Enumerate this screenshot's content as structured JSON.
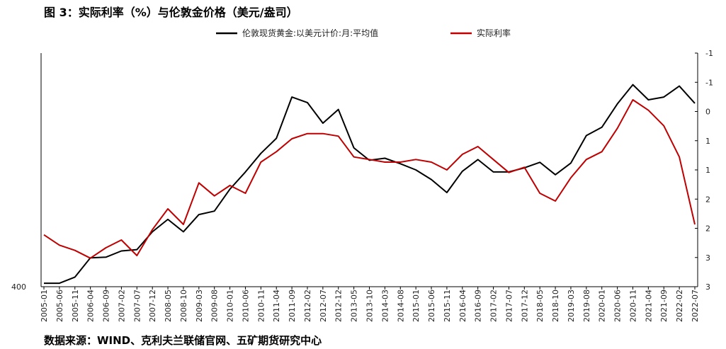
{
  "title": "图 3：实际利率（%）与伦敦金价格（美元/盎司）",
  "source": "数据来源：WIND、克利夫兰联储官网、五矿期货研究中心",
  "chart_data": {
    "type": "line",
    "title": "图 3：实际利率（%）与伦敦金价格（美元/盎司）",
    "x_ticks": [
      "2005-01",
      "2005-06",
      "2005-11",
      "2006-04",
      "2006-09",
      "2007-02",
      "2007-07",
      "2007-12",
      "2008-05",
      "2008-10",
      "2009-03",
      "2009-08",
      "2010-01",
      "2010-06",
      "2010-11",
      "2011-04",
      "2011-09",
      "2012-02",
      "2012-07",
      "2012-12",
      "2013-05",
      "2013-10",
      "2014-03",
      "2014-08",
      "2015-01",
      "2015-06",
      "2015-11",
      "2016-04",
      "2016-09",
      "2017-02",
      "2017-07",
      "2017-12",
      "2018-05",
      "2018-10",
      "2019-03",
      "2019-08",
      "2020-01",
      "2020-06",
      "2020-11",
      "2021-04",
      "2021-09",
      "2022-02",
      "2022-07"
    ],
    "left_axis": {
      "ticks": [
        "400"
      ],
      "min": 400,
      "max": 2100
    },
    "right_axis": {
      "ticks": [
        "-1",
        "-1",
        "0",
        "1",
        "1",
        "2",
        "2",
        "3",
        "3"
      ],
      "min": -1.5,
      "max": 3.0,
      "inverted": true
    },
    "legend": {
      "position": "top",
      "entries": [
        "伦敦现货黄金:以美元计价:月:平均值",
        "实际利率"
      ]
    },
    "series": [
      {
        "name": "伦敦现货黄金:以美元计价:月:平均值",
        "axis": "left",
        "color": "#000000",
        "points": [
          [
            "2005-01",
            425
          ],
          [
            "2005-06",
            425
          ],
          [
            "2005-11",
            470
          ],
          [
            "2006-04",
            610
          ],
          [
            "2006-09",
            615
          ],
          [
            "2007-02",
            660
          ],
          [
            "2007-07",
            670
          ],
          [
            "2007-12",
            800
          ],
          [
            "2008-05",
            890
          ],
          [
            "2008-10",
            800
          ],
          [
            "2009-03",
            925
          ],
          [
            "2009-08",
            950
          ],
          [
            "2010-01",
            1110
          ],
          [
            "2010-06",
            1235
          ],
          [
            "2010-11",
            1370
          ],
          [
            "2011-04",
            1480
          ],
          [
            "2011-09",
            1780
          ],
          [
            "2012-02",
            1740
          ],
          [
            "2012-07",
            1590
          ],
          [
            "2012-12",
            1690
          ],
          [
            "2013-05",
            1410
          ],
          [
            "2013-10",
            1320
          ],
          [
            "2014-03",
            1335
          ],
          [
            "2014-08",
            1295
          ],
          [
            "2015-01",
            1250
          ],
          [
            "2015-06",
            1180
          ],
          [
            "2015-11",
            1085
          ],
          [
            "2016-04",
            1240
          ],
          [
            "2016-09",
            1325
          ],
          [
            "2017-02",
            1235
          ],
          [
            "2017-07",
            1235
          ],
          [
            "2017-12",
            1265
          ],
          [
            "2018-05",
            1305
          ],
          [
            "2018-10",
            1215
          ],
          [
            "2019-03",
            1300
          ],
          [
            "2019-08",
            1500
          ],
          [
            "2020-01",
            1560
          ],
          [
            "2020-06",
            1730
          ],
          [
            "2020-11",
            1870
          ],
          [
            "2021-04",
            1760
          ],
          [
            "2021-09",
            1780
          ],
          [
            "2022-02",
            1860
          ],
          [
            "2022-07",
            1735
          ]
        ]
      },
      {
        "name": "实际利率",
        "axis": "right",
        "color": "#c00000",
        "points": [
          [
            "2005-01",
            2.0
          ],
          [
            "2005-06",
            2.2
          ],
          [
            "2005-11",
            2.3
          ],
          [
            "2006-04",
            2.45
          ],
          [
            "2006-09",
            2.25
          ],
          [
            "2007-02",
            2.1
          ],
          [
            "2007-07",
            2.4
          ],
          [
            "2007-12",
            1.9
          ],
          [
            "2008-05",
            1.5
          ],
          [
            "2008-10",
            1.8
          ],
          [
            "2009-03",
            1.0
          ],
          [
            "2009-08",
            1.25
          ],
          [
            "2010-01",
            1.05
          ],
          [
            "2010-06",
            1.2
          ],
          [
            "2010-11",
            0.6
          ],
          [
            "2011-04",
            0.4
          ],
          [
            "2011-09",
            0.15
          ],
          [
            "2012-02",
            0.05
          ],
          [
            "2012-07",
            0.05
          ],
          [
            "2012-12",
            0.1
          ],
          [
            "2013-05",
            0.5
          ],
          [
            "2013-10",
            0.55
          ],
          [
            "2014-03",
            0.6
          ],
          [
            "2014-08",
            0.6
          ],
          [
            "2015-01",
            0.55
          ],
          [
            "2015-06",
            0.6
          ],
          [
            "2015-11",
            0.75
          ],
          [
            "2016-04",
            0.45
          ],
          [
            "2016-09",
            0.3
          ],
          [
            "2017-02",
            0.55
          ],
          [
            "2017-07",
            0.8
          ],
          [
            "2017-12",
            0.7
          ],
          [
            "2018-05",
            1.2
          ],
          [
            "2018-10",
            1.35
          ],
          [
            "2019-03",
            0.9
          ],
          [
            "2019-08",
            0.55
          ],
          [
            "2020-01",
            0.4
          ],
          [
            "2020-06",
            -0.05
          ],
          [
            "2020-11",
            -0.6
          ],
          [
            "2021-04",
            -0.4
          ],
          [
            "2021-09",
            -0.1
          ],
          [
            "2022-02",
            0.5
          ],
          [
            "2022-07",
            1.8
          ]
        ]
      }
    ]
  }
}
